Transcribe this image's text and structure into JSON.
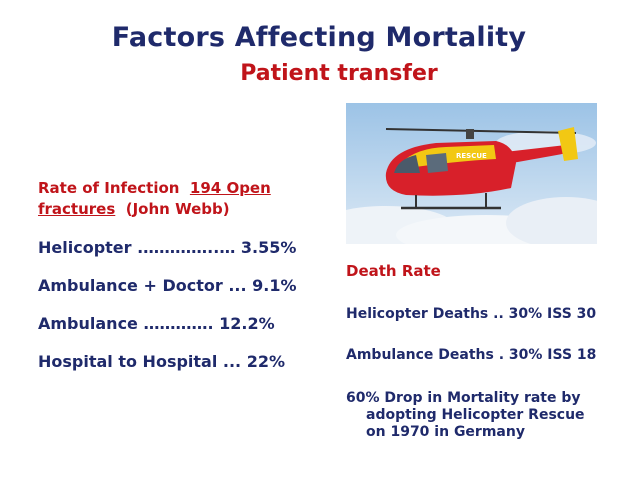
{
  "title": "Factors Affecting Mortality",
  "subtitle": "Patient transfer",
  "infection": {
    "label": "Rate of Infection",
    "link": "194 Open fractures",
    "source": "(John Webb)"
  },
  "left_stats": [
    {
      "text": "Helicopter .…………..…   3.55%"
    },
    {
      "text": "Ambulance + Doctor ... 9.1%"
    },
    {
      "text": "Ambulance ………….  12.2%"
    },
    {
      "text": "Hospital  to Hospital ...  22%"
    }
  ],
  "photo": {
    "icon": "rescue-helicopter-photo",
    "decal": "RESCUE",
    "colors": {
      "sky": "#c9ddf0",
      "cloud": "#eef3f8",
      "body_red": "#d8202a",
      "body_yellow": "#f2c813"
    }
  },
  "death_rate": {
    "title": "Death Rate",
    "items": [
      {
        "text": "Helicopter Deaths  ..  30%  ISS 30"
      },
      {
        "text": "Ambulance Deaths  . 30%  ISS 18"
      }
    ],
    "note_lines": [
      "60% Drop in Mortality rate by",
      "adopting Helicopter Rescue",
      "on 1970 in Germany"
    ]
  }
}
